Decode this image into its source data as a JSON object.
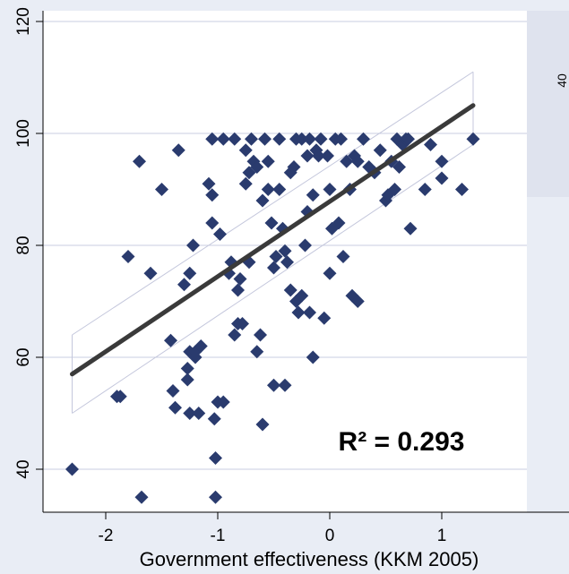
{
  "chart_data": {
    "type": "scatter",
    "title": "",
    "xlabel": "Government effectiveness (KKM 2005)",
    "ylabel": "",
    "xlim": [
      -2.5,
      1.6
    ],
    "ylim": [
      34,
      122
    ],
    "x_ticks": [
      -2,
      -1,
      0,
      1
    ],
    "x_tick_labels": [
      "-2",
      "-1",
      "0",
      "1"
    ],
    "y_ticks": [
      40,
      60,
      80,
      100,
      120
    ],
    "y_tick_labels": [
      "40",
      "60",
      "80",
      "100",
      "120"
    ],
    "grid": true,
    "annotation": "R² = 0.293",
    "colors": {
      "points": "#2a3b6e",
      "fit_line": "#3a3a3a",
      "ci_band": "#c4c7dc",
      "plot_bg": "#ffffff",
      "page_bg": "#e9edf5"
    },
    "fit_line": {
      "x": [
        -2.3,
        1.28
      ],
      "y": [
        57,
        105
      ]
    },
    "ci_upper": {
      "x": [
        -2.3,
        1.28
      ],
      "y": [
        64,
        111
      ]
    },
    "ci_lower": {
      "x": [
        -2.3,
        1.28
      ],
      "y": [
        50,
        98
      ]
    },
    "series": [
      {
        "values": [
          [
            -2.3,
            40
          ],
          [
            -1.9,
            53
          ],
          [
            -1.87,
            53
          ],
          [
            -1.8,
            78
          ],
          [
            -1.7,
            95
          ],
          [
            -1.68,
            35
          ],
          [
            -1.6,
            75
          ],
          [
            -1.5,
            90
          ],
          [
            -1.42,
            63
          ],
          [
            -1.4,
            54
          ],
          [
            -1.38,
            51
          ],
          [
            -1.35,
            97
          ],
          [
            -1.3,
            73
          ],
          [
            -1.25,
            75
          ],
          [
            -1.22,
            80
          ],
          [
            -1.25,
            61
          ],
          [
            -1.2,
            61
          ],
          [
            -1.2,
            60
          ],
          [
            -1.27,
            58
          ],
          [
            -1.27,
            56
          ],
          [
            -1.25,
            50
          ],
          [
            -1.17,
            50
          ],
          [
            -1.15,
            62
          ],
          [
            -1.08,
            91
          ],
          [
            -1.05,
            89
          ],
          [
            -1.05,
            84
          ],
          [
            -1.05,
            99
          ],
          [
            -1.03,
            49
          ],
          [
            -1.02,
            42
          ],
          [
            -1.02,
            35
          ],
          [
            -1.0,
            52
          ],
          [
            -0.98,
            82
          ],
          [
            -0.95,
            52
          ],
          [
            -0.95,
            99
          ],
          [
            -0.9,
            75
          ],
          [
            -0.88,
            77
          ],
          [
            -0.85,
            99
          ],
          [
            -0.85,
            64
          ],
          [
            -0.82,
            72
          ],
          [
            -0.82,
            66
          ],
          [
            -0.8,
            74
          ],
          [
            -0.78,
            66
          ],
          [
            -0.75,
            97
          ],
          [
            -0.75,
            91
          ],
          [
            -0.72,
            93
          ],
          [
            -0.72,
            77
          ],
          [
            -0.7,
            99
          ],
          [
            -0.68,
            95
          ],
          [
            -0.65,
            94
          ],
          [
            -0.65,
            61
          ],
          [
            -0.62,
            64
          ],
          [
            -0.6,
            48
          ],
          [
            -0.6,
            88
          ],
          [
            -0.58,
            99
          ],
          [
            -0.55,
            90
          ],
          [
            -0.55,
            95
          ],
          [
            -0.52,
            84
          ],
          [
            -0.5,
            76
          ],
          [
            -0.5,
            55
          ],
          [
            -0.48,
            78
          ],
          [
            -0.45,
            99
          ],
          [
            -0.45,
            90
          ],
          [
            -0.42,
            83
          ],
          [
            -0.4,
            79
          ],
          [
            -0.4,
            55
          ],
          [
            -0.38,
            77
          ],
          [
            -0.35,
            72
          ],
          [
            -0.35,
            93
          ],
          [
            -0.32,
            94
          ],
          [
            -0.3,
            99
          ],
          [
            -0.3,
            70
          ],
          [
            -0.28,
            68
          ],
          [
            -0.25,
            99
          ],
          [
            -0.25,
            71
          ],
          [
            -0.22,
            80
          ],
          [
            -0.2,
            96
          ],
          [
            -0.2,
            86
          ],
          [
            -0.18,
            99
          ],
          [
            -0.18,
            68
          ],
          [
            -0.15,
            60
          ],
          [
            -0.15,
            89
          ],
          [
            -0.12,
            97
          ],
          [
            -0.1,
            96
          ],
          [
            -0.08,
            99
          ],
          [
            -0.05,
            67
          ],
          [
            -0.02,
            96
          ],
          [
            0.0,
            90
          ],
          [
            0.02,
            83
          ],
          [
            0.0,
            75
          ],
          [
            0.05,
            99
          ],
          [
            0.08,
            84
          ],
          [
            0.1,
            99
          ],
          [
            0.12,
            78
          ],
          [
            0.15,
            95
          ],
          [
            0.18,
            90
          ],
          [
            0.2,
            71
          ],
          [
            0.22,
            96
          ],
          [
            0.25,
            70
          ],
          [
            0.25,
            95
          ],
          [
            0.3,
            99
          ],
          [
            0.35,
            94
          ],
          [
            0.4,
            93
          ],
          [
            0.45,
            97
          ],
          [
            0.5,
            88
          ],
          [
            0.52,
            89
          ],
          [
            0.55,
            95
          ],
          [
            0.58,
            90
          ],
          [
            0.6,
            99
          ],
          [
            0.62,
            94
          ],
          [
            0.65,
            98
          ],
          [
            0.68,
            99
          ],
          [
            0.7,
            99
          ],
          [
            0.72,
            83
          ],
          [
            0.85,
            90
          ],
          [
            0.9,
            98
          ],
          [
            1.0,
            95
          ],
          [
            1.0,
            92
          ],
          [
            1.18,
            90
          ],
          [
            1.28,
            99
          ]
        ]
      }
    ]
  },
  "inset": {
    "tick_label": "40",
    "bg_color": "#dfe3ee"
  }
}
